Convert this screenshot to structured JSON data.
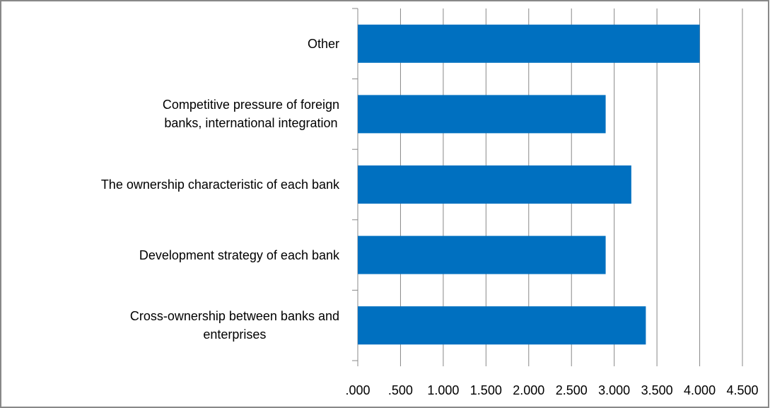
{
  "chart_data": {
    "type": "bar",
    "orientation": "horizontal",
    "categories": [
      "Cross-ownership between banks and\nenterprises",
      "Development strategy of each bank",
      "The ownership characteristic of each bank",
      "Competitive pressure of foreign\nbanks, international integration",
      "Other"
    ],
    "values": [
      3.37,
      2.9,
      3.2,
      2.9,
      4.0
    ],
    "color": "#0070c0",
    "xlim": [
      0,
      4.5
    ],
    "xticks": [
      {
        "value": 0,
        "label": ".000"
      },
      {
        "value": 0.5,
        "label": ".500"
      },
      {
        "value": 1,
        "label": "1.000"
      },
      {
        "value": 1.5,
        "label": "1.500"
      },
      {
        "value": 2,
        "label": "2.000"
      },
      {
        "value": 2.5,
        "label": "2.500"
      },
      {
        "value": 3,
        "label": "3.000"
      },
      {
        "value": 3.5,
        "label": "3.500"
      },
      {
        "value": 4,
        "label": "4.000"
      },
      {
        "value": 4.5,
        "label": "4.500"
      }
    ],
    "grid": true
  }
}
